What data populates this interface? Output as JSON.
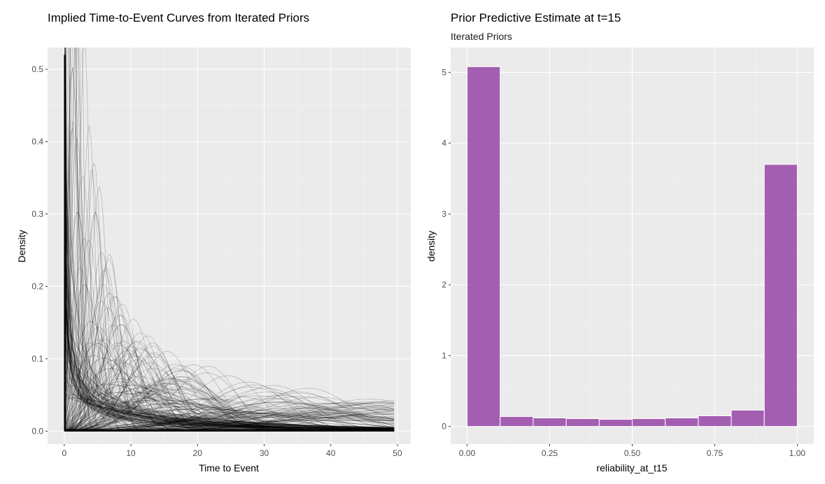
{
  "chart_data": [
    {
      "type": "line",
      "title": "Implied Time-to-Event Curves from Iterated Priors",
      "subtitle": "",
      "xlabel": "Time to Event",
      "ylabel": "Density",
      "xlim": [
        -2.5,
        52.0
      ],
      "ylim": [
        -0.018,
        0.53
      ],
      "xticks": [
        0,
        10,
        20,
        30,
        40,
        50
      ],
      "yticks": [
        0.0,
        0.1,
        0.2,
        0.3,
        0.4,
        0.5
      ],
      "x_domain": [
        0,
        49.5
      ],
      "grid": true,
      "line_color": "#000000",
      "series_count": 280,
      "series": [
        {
          "peak_x": 0.3,
          "peak_y": 0.52
        },
        {
          "peak_x": 1.2,
          "peak_y": 0.5
        },
        {
          "peak_x": 2.0,
          "peak_y": 0.49
        },
        {
          "peak_x": 3.0,
          "peak_y": 0.48
        },
        {
          "peak_x": 4.0,
          "peak_y": 0.45
        },
        {
          "peak_x": 5.0,
          "peak_y": 0.44
        },
        {
          "peak_x": 6.0,
          "peak_y": 0.46
        },
        {
          "peak_x": 7.0,
          "peak_y": 0.39
        },
        {
          "peak_x": 9.5,
          "peak_y": 0.35
        },
        {
          "peak_x": 11.5,
          "peak_y": 0.3
        },
        {
          "peak_x": 14.0,
          "peak_y": 0.26
        },
        {
          "peak_x": 16.0,
          "peak_y": 0.2
        },
        {
          "peak_x": 18.0,
          "peak_y": 0.22
        },
        {
          "peak_x": 20.0,
          "peak_y": 0.18
        },
        {
          "peak_x": 24.0,
          "peak_y": 0.12
        },
        {
          "peak_x": 32.0,
          "peak_y": 0.08
        },
        {
          "peak_x": 42.0,
          "peak_y": 0.075
        }
      ]
    },
    {
      "type": "bar",
      "title": "Prior Predictive Estimate at t=15",
      "subtitle": "Iterated Priors",
      "xlabel": "reliability_at_t15",
      "ylabel": "density",
      "xlim": [
        -0.05,
        1.05
      ],
      "ylim": [
        -0.25,
        5.35
      ],
      "xticks": [
        "0.00",
        "0.25",
        "0.50",
        "0.75",
        "1.00"
      ],
      "yticks": [
        "0",
        "1",
        "2",
        "3",
        "4",
        "5"
      ],
      "bin_edges": [
        0.0,
        0.1,
        0.2,
        0.3,
        0.4,
        0.5,
        0.6,
        0.7,
        0.8,
        0.9,
        1.0
      ],
      "values": [
        5.08,
        0.14,
        0.12,
        0.11,
        0.1,
        0.11,
        0.12,
        0.15,
        0.23,
        3.7
      ],
      "bar_color": "#9b4fab",
      "grid": true
    }
  ]
}
